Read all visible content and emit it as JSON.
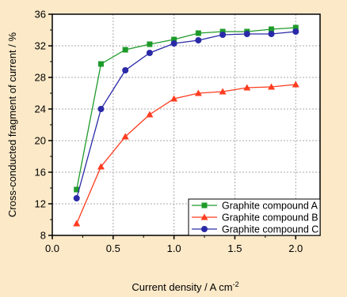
{
  "chart_data": {
    "type": "line",
    "xlabel": "Current density / A cm",
    "xlabel_superscript": "-2",
    "ylabel": "Cross-conducted fragment of current / %",
    "xlim": [
      0.0,
      2.2
    ],
    "ylim": [
      8,
      36
    ],
    "xticks": [
      0.0,
      0.5,
      1.0,
      1.5,
      2.0
    ],
    "xtick_labels": [
      "0.0",
      "0.5",
      "1.0",
      "1.5",
      "2.0"
    ],
    "yticks": [
      8,
      12,
      16,
      20,
      24,
      28,
      32,
      36
    ],
    "ytick_labels": [
      "8",
      "12",
      "16",
      "20",
      "24",
      "28",
      "32",
      "36"
    ],
    "grid": true,
    "legend_position": "bottom-right",
    "x": [
      0.2,
      0.4,
      0.6,
      0.8,
      1.0,
      1.2,
      1.4,
      1.6,
      1.8,
      2.0
    ],
    "series": [
      {
        "name": "Graphite compound A",
        "color": "#1e9a2a",
        "marker": "square",
        "values": [
          13.8,
          29.7,
          31.5,
          32.2,
          32.8,
          33.6,
          33.8,
          33.8,
          34.1,
          34.3
        ]
      },
      {
        "name": "Graphite compound B",
        "color": "#ff3b1f",
        "marker": "triangle",
        "values": [
          9.5,
          16.7,
          20.5,
          23.3,
          25.3,
          26.0,
          26.2,
          26.7,
          26.8,
          27.1
        ]
      },
      {
        "name": "Graphite compound C",
        "color": "#2a2aa8",
        "marker": "circle",
        "values": [
          12.7,
          24.0,
          28.9,
          31.1,
          32.3,
          32.7,
          33.4,
          33.5,
          33.5,
          33.8
        ]
      }
    ]
  }
}
